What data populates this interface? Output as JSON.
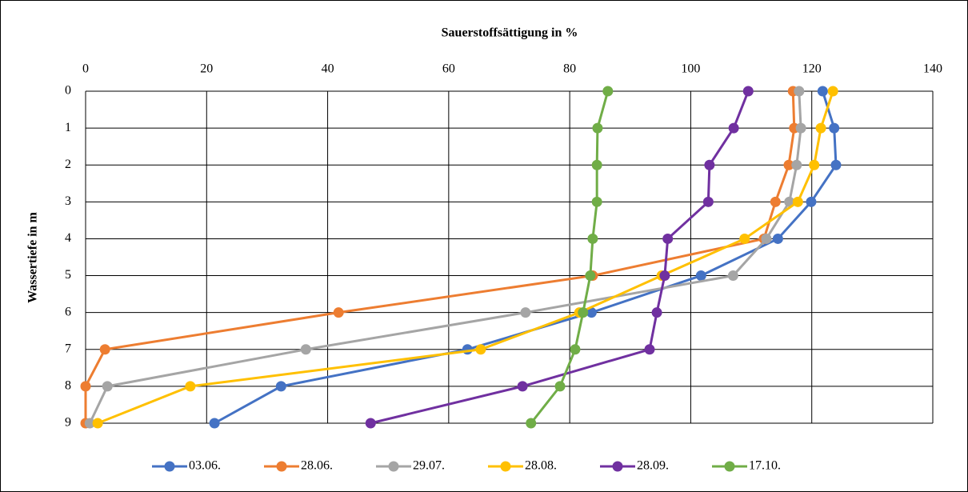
{
  "chart_data": {
    "type": "line",
    "orientation": "horizontal",
    "title": "Sauerstoffsättigung in %",
    "y_label": "Wassertiefe in m",
    "categories": [
      0,
      1,
      2,
      3,
      4,
      5,
      6,
      7,
      8,
      9
    ],
    "xlim": [
      0,
      140
    ],
    "xticks": [
      0,
      20,
      40,
      60,
      80,
      100,
      120,
      140
    ],
    "grid": true,
    "legend": "bottom",
    "series": [
      {
        "name": "03.06.",
        "color": "#4472c4",
        "values": [
          121.8,
          123.7,
          124,
          119.9,
          114.4,
          101.7,
          83.6,
          63.1,
          32.3,
          21.3
        ]
      },
      {
        "name": "28.06.",
        "color": "#ed7d31",
        "values": [
          116.9,
          117.1,
          116.2,
          114,
          112.1,
          83.8,
          41.8,
          3.2,
          0,
          0
        ]
      },
      {
        "name": "29.07.",
        "color": "#a5a5a5",
        "values": [
          117.9,
          118.2,
          117.5,
          116.3,
          112.5,
          107,
          72.7,
          36.4,
          3.6,
          0.7
        ]
      },
      {
        "name": "28.08.",
        "color": "#ffc000",
        "values": [
          123.5,
          121.5,
          120.4,
          117.7,
          108.9,
          95.2,
          81.6,
          65.3,
          17.3,
          2
        ]
      },
      {
        "name": "28.09.",
        "color": "#7030a0",
        "values": [
          109.5,
          107.1,
          103.1,
          102.9,
          96.2,
          95.7,
          94.4,
          93.2,
          72.2,
          47.1
        ]
      },
      {
        "name": "17.10.",
        "color": "#70ad47",
        "values": [
          86.3,
          84.6,
          84.5,
          84.5,
          83.8,
          83.4,
          82.2,
          80.9,
          78.4,
          73.6
        ]
      }
    ]
  }
}
